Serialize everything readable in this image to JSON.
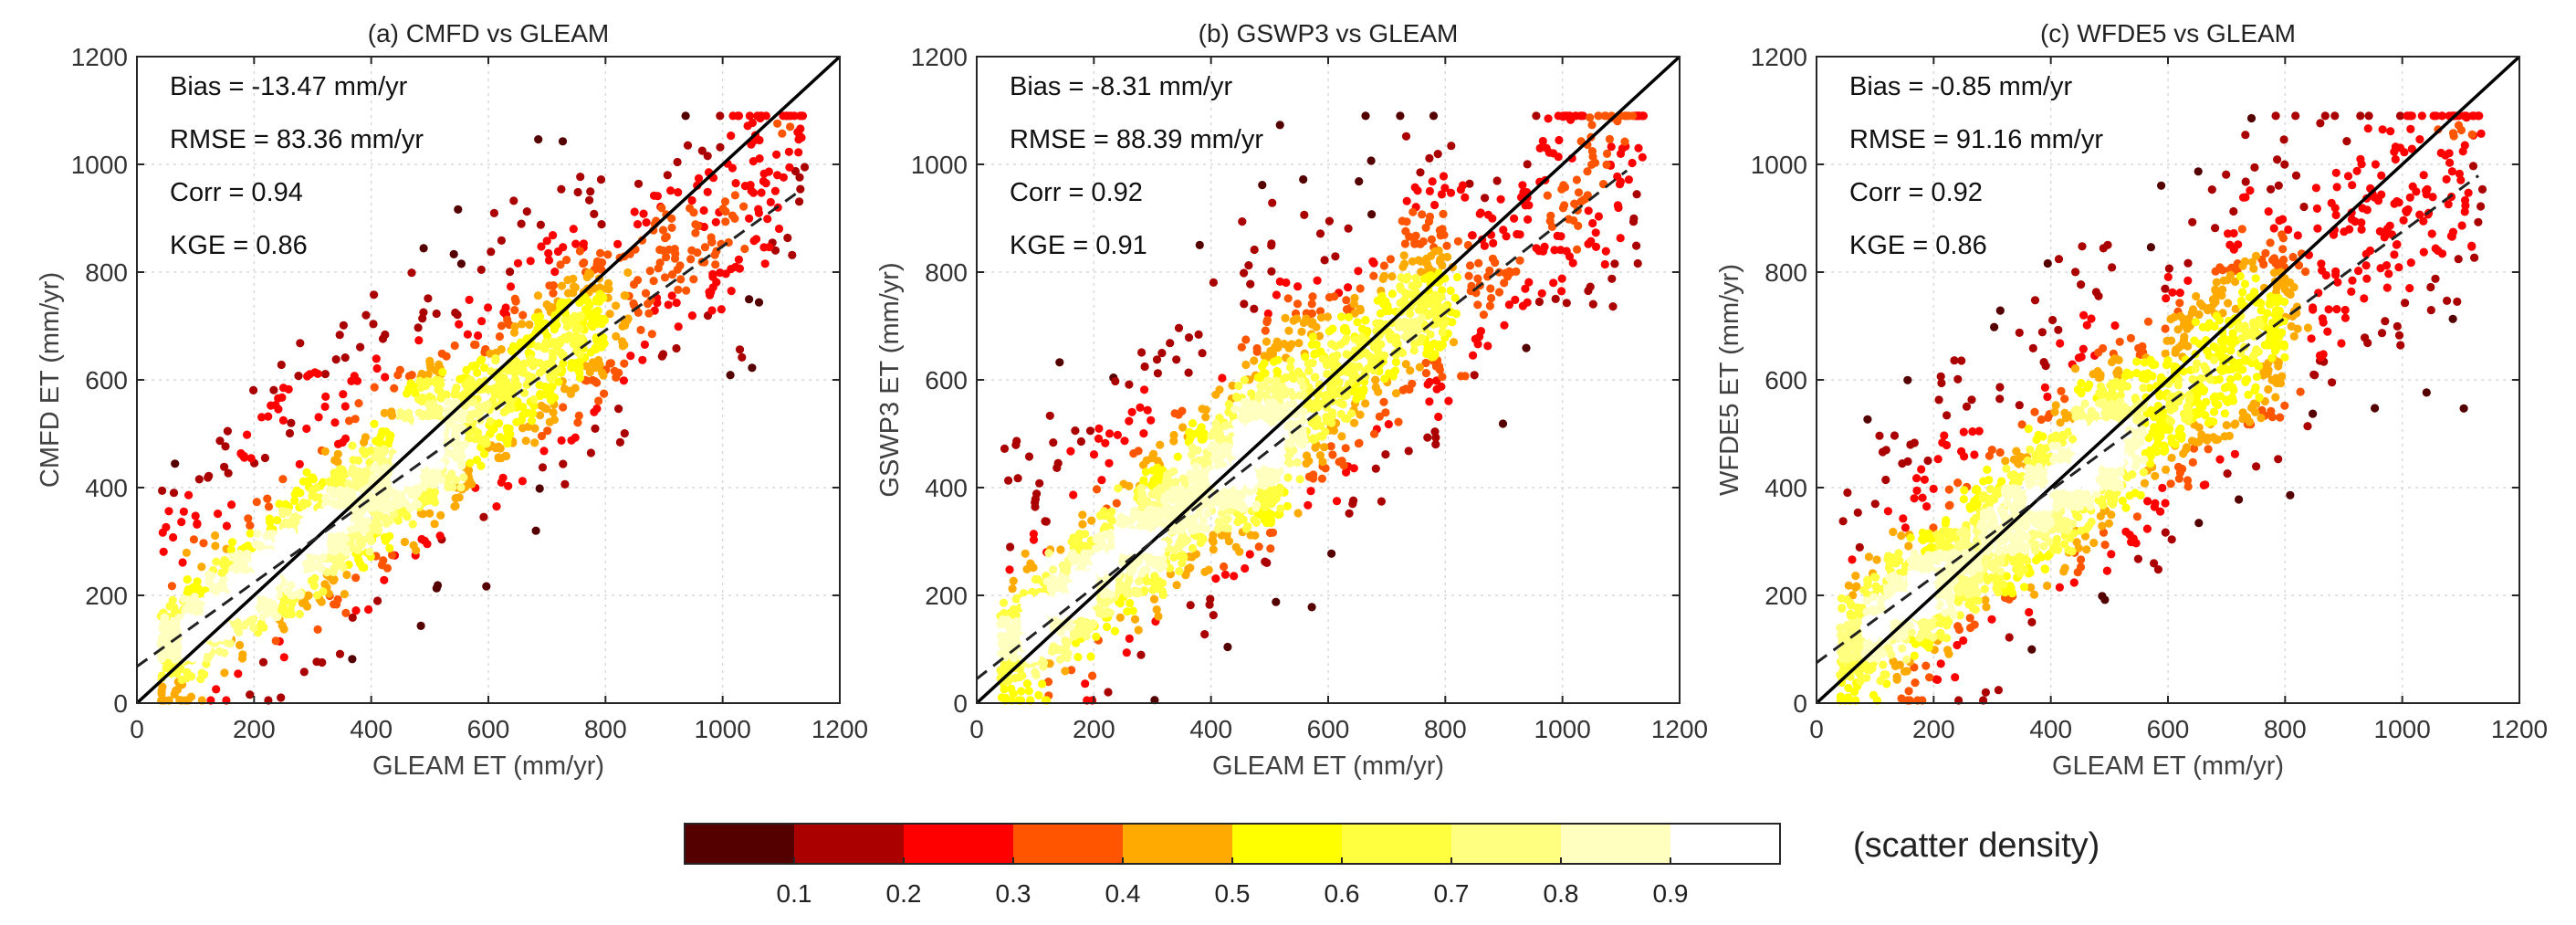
{
  "colors": {
    "palette": [
      "#550000",
      "#aa0000",
      "#ff0000",
      "#ff5500",
      "#ffaa00",
      "#ffff00",
      "#ffff40",
      "#ffff80",
      "#ffffbf",
      "#ffffff"
    ],
    "one_to_one_line": "#000000",
    "fit_line": "#222222",
    "grid": "#d9d9d9"
  },
  "colorbar": {
    "ticks": [
      "0.1",
      "0.2",
      "0.3",
      "0.4",
      "0.5",
      "0.6",
      "0.7",
      "0.8",
      "0.9"
    ],
    "label": "(scatter density)"
  },
  "chart_data": [
    {
      "type": "scatter",
      "title": "(a) CMFD vs GLEAM",
      "xlabel": "GLEAM ET (mm/yr)",
      "ylabel": "CMFD ET (mm/yr)",
      "xlim": [
        0,
        1200
      ],
      "ylim": [
        0,
        1200
      ],
      "xticks": [
        "0",
        "200",
        "400",
        "600",
        "800",
        "1000",
        "1200"
      ],
      "yticks": [
        "0",
        "200",
        "400",
        "600",
        "800",
        "1000",
        "1200"
      ],
      "stats": {
        "bias": "Bias = -13.47 mm/yr",
        "rmse": "RMSE = 83.36 mm/yr",
        "corr": "Corr = 0.94",
        "kge": "KGE = 0.86"
      },
      "fit_line": {
        "slope": 0.78,
        "intercept": 68,
        "x_range": [
          0,
          1130
        ]
      },
      "one_to_one": true,
      "seed": 11,
      "n_points": 2600,
      "scatter_spread": 60
    },
    {
      "type": "scatter",
      "title": "(b) GSWP3 vs GLEAM",
      "xlabel": "GLEAM ET (mm/yr)",
      "ylabel": "GSWP3 ET (mm/yr)",
      "xlim": [
        0,
        1200
      ],
      "ylim": [
        0,
        1200
      ],
      "xticks": [
        "0",
        "200",
        "400",
        "600",
        "800",
        "1000",
        "1200"
      ],
      "yticks": [
        "0",
        "200",
        "400",
        "600",
        "800",
        "1000",
        "1200"
      ],
      "stats": {
        "bias": "Bias = -8.31 mm/yr",
        "rmse": "RMSE = 88.39 mm/yr",
        "corr": "Corr = 0.92",
        "kge": "KGE = 0.91"
      },
      "fit_line": {
        "slope": 0.85,
        "intercept": 45,
        "x_range": [
          0,
          1110
        ]
      },
      "one_to_one": true,
      "seed": 23,
      "n_points": 2600,
      "scatter_spread": 70
    },
    {
      "type": "scatter",
      "title": "(c) WFDE5 vs GLEAM",
      "xlabel": "GLEAM ET (mm/yr)",
      "ylabel": "WFDE5 ET (mm/yr)",
      "xlim": [
        0,
        1200
      ],
      "ylim": [
        0,
        1200
      ],
      "xticks": [
        "0",
        "200",
        "400",
        "600",
        "800",
        "1000",
        "1200"
      ],
      "yticks": [
        "0",
        "200",
        "400",
        "600",
        "800",
        "1000",
        "1200"
      ],
      "stats": {
        "bias": "Bias = -0.85 mm/yr",
        "rmse": "RMSE = 91.16 mm/yr",
        "corr": "Corr = 0.92",
        "kge": "KGE = 0.86"
      },
      "fit_line": {
        "slope": 0.8,
        "intercept": 75,
        "x_range": [
          0,
          1130
        ]
      },
      "one_to_one": true,
      "seed": 37,
      "n_points": 2600,
      "scatter_spread": 72
    }
  ]
}
